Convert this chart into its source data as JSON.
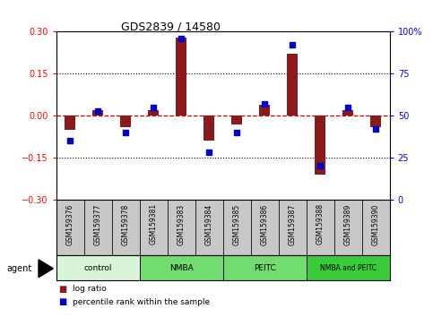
{
  "title": "GDS2839 / 14580",
  "samples": [
    "GSM159376",
    "GSM159377",
    "GSM159378",
    "GSM159381",
    "GSM159383",
    "GSM159384",
    "GSM159385",
    "GSM159386",
    "GSM159387",
    "GSM159388",
    "GSM159389",
    "GSM159390"
  ],
  "log_ratio": [
    -0.05,
    0.02,
    -0.04,
    0.02,
    0.28,
    -0.09,
    -0.03,
    0.04,
    0.22,
    -0.21,
    0.02,
    -0.04
  ],
  "percentile_rank": [
    35,
    53,
    40,
    55,
    96,
    28,
    40,
    57,
    92,
    20,
    55,
    42
  ],
  "groups": [
    {
      "label": "control",
      "start": 0,
      "end": 3,
      "color": "#d8f5d8"
    },
    {
      "label": "NMBA",
      "start": 3,
      "end": 6,
      "color": "#70dd70"
    },
    {
      "label": "PEITC",
      "start": 6,
      "end": 9,
      "color": "#70dd70"
    },
    {
      "label": "NMBA and PEITC",
      "start": 9,
      "end": 12,
      "color": "#38cc38"
    }
  ],
  "ylim": [
    -0.3,
    0.3
  ],
  "yticks_left": [
    -0.3,
    -0.15,
    0,
    0.15,
    0.3
  ],
  "yticks_right_vals": [
    0,
    25,
    50,
    75,
    100
  ],
  "bar_color": "#8b1a1a",
  "dot_color": "#0000cc",
  "hline_color": "#cc0000",
  "sample_bg_color": "#c8c8c8",
  "bar_width": 0.4,
  "dot_size": 4
}
